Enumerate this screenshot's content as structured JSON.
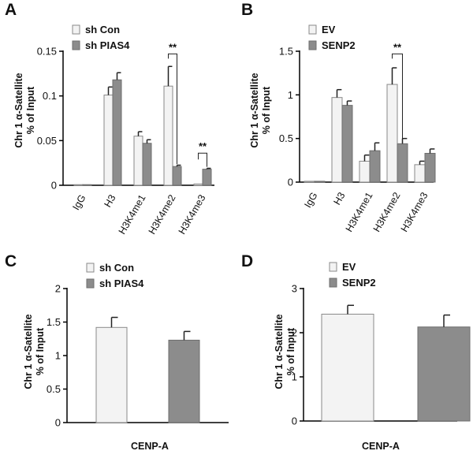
{
  "chart_data": [
    {
      "panel": "A",
      "type": "bar",
      "ylabel_line1": "Chr 1 α-Satellite",
      "ylabel_line2": "% of Input",
      "xlabel": "",
      "ylim": [
        0,
        0.15
      ],
      "yticks": [
        "0",
        "0.05",
        "0.1",
        "0.15"
      ],
      "ytick_values": [
        0,
        0.05,
        0.1,
        0.15
      ],
      "categories": [
        "IgG",
        "H3",
        "H3K4me1",
        "H3K4me2",
        "H3K4me3"
      ],
      "series": [
        {
          "name": "sh Con",
          "style": "light",
          "values": [
            0.0,
            0.101,
            0.055,
            0.111,
            0.0015
          ],
          "errors": [
            0.0,
            0.009,
            0.005,
            0.022,
            0.0
          ]
        },
        {
          "name": "sh PIAS4",
          "style": "dark",
          "values": [
            0.0,
            0.118,
            0.047,
            0.021,
            0.018
          ],
          "errors": [
            0.0,
            0.008,
            0.004,
            0.0015,
            0.001
          ]
        }
      ],
      "annotations": [
        {
          "text": "**",
          "category_index": 3,
          "bracket_top": 0.147
        },
        {
          "text": "**",
          "category_index": 4,
          "bracket_top": 0.036
        }
      ]
    },
    {
      "panel": "B",
      "type": "bar",
      "ylabel_line1": "Chr 1 α-Satellite",
      "ylabel_line2": "% of Input",
      "xlabel": "",
      "ylim": [
        0,
        1.5
      ],
      "yticks": [
        "0",
        "0.5",
        "1",
        "1.5"
      ],
      "ytick_values": [
        0,
        0.5,
        1,
        1.5
      ],
      "categories": [
        "IgG",
        "H3",
        "H3K4me1",
        "H3K4me2",
        "H3K4me3"
      ],
      "series": [
        {
          "name": "EV",
          "style": "light",
          "values": [
            0.01,
            0.97,
            0.24,
            1.12,
            0.2
          ],
          "errors": [
            0.0,
            0.09,
            0.07,
            0.19,
            0.04
          ]
        },
        {
          "name": "SENP2",
          "style": "dark",
          "values": [
            0.01,
            0.88,
            0.36,
            0.44,
            0.33
          ],
          "errors": [
            0.0,
            0.05,
            0.09,
            0.06,
            0.05
          ]
        }
      ],
      "annotations": [
        {
          "text": "**",
          "category_index": 3,
          "bracket_top": 1.47
        }
      ]
    },
    {
      "panel": "C",
      "type": "bar",
      "ylabel_line1": "Chr 1 α-Satellite",
      "ylabel_line2": "% of Input",
      "xlabel": "CENP-A",
      "ylim": [
        0,
        2
      ],
      "yticks": [
        "0",
        "0.5",
        "1",
        "1.5",
        "2"
      ],
      "ytick_values": [
        0,
        0.5,
        1,
        1.5,
        2
      ],
      "categories": [
        ""
      ],
      "series": [
        {
          "name": "sh Con",
          "style": "light",
          "values": [
            1.42
          ],
          "errors": [
            0.15
          ]
        },
        {
          "name": "sh PIAS4",
          "style": "dark",
          "values": [
            1.23
          ],
          "errors": [
            0.13
          ]
        }
      ],
      "annotations": []
    },
    {
      "panel": "D",
      "type": "bar",
      "ylabel_line1": "Chr 1 α-Satellite",
      "ylabel_line2": "% of Input",
      "xlabel": "CENP-A",
      "ylim": [
        0,
        3
      ],
      "yticks": [
        "0",
        "1",
        "2",
        "3"
      ],
      "ytick_values": [
        0,
        1,
        2,
        3
      ],
      "categories": [
        ""
      ],
      "series": [
        {
          "name": "EV",
          "style": "light",
          "values": [
            2.42
          ],
          "errors": [
            0.2
          ]
        },
        {
          "name": "SENP2",
          "style": "dark",
          "values": [
            2.13
          ],
          "errors": [
            0.27
          ]
        }
      ],
      "annotations": []
    }
  ]
}
